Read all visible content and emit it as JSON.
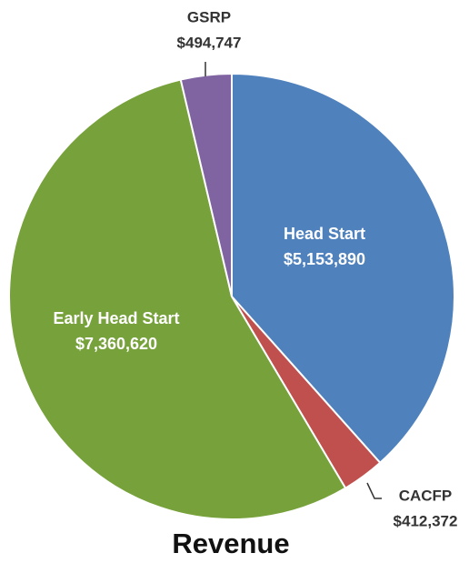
{
  "chart_data": {
    "type": "pie",
    "title": "Revenue",
    "categories": [
      "Head Start",
      "CACFP",
      "Early Head Start",
      "GSRP"
    ],
    "values": [
      5153890,
      412372,
      7360620,
      494747
    ],
    "value_labels": [
      "$5,153,890",
      "$412,372",
      "$7,360,620",
      "$494,747"
    ],
    "colors": [
      "#4f81bd",
      "#c0504d",
      "#77a13a",
      "#8064a2"
    ]
  }
}
